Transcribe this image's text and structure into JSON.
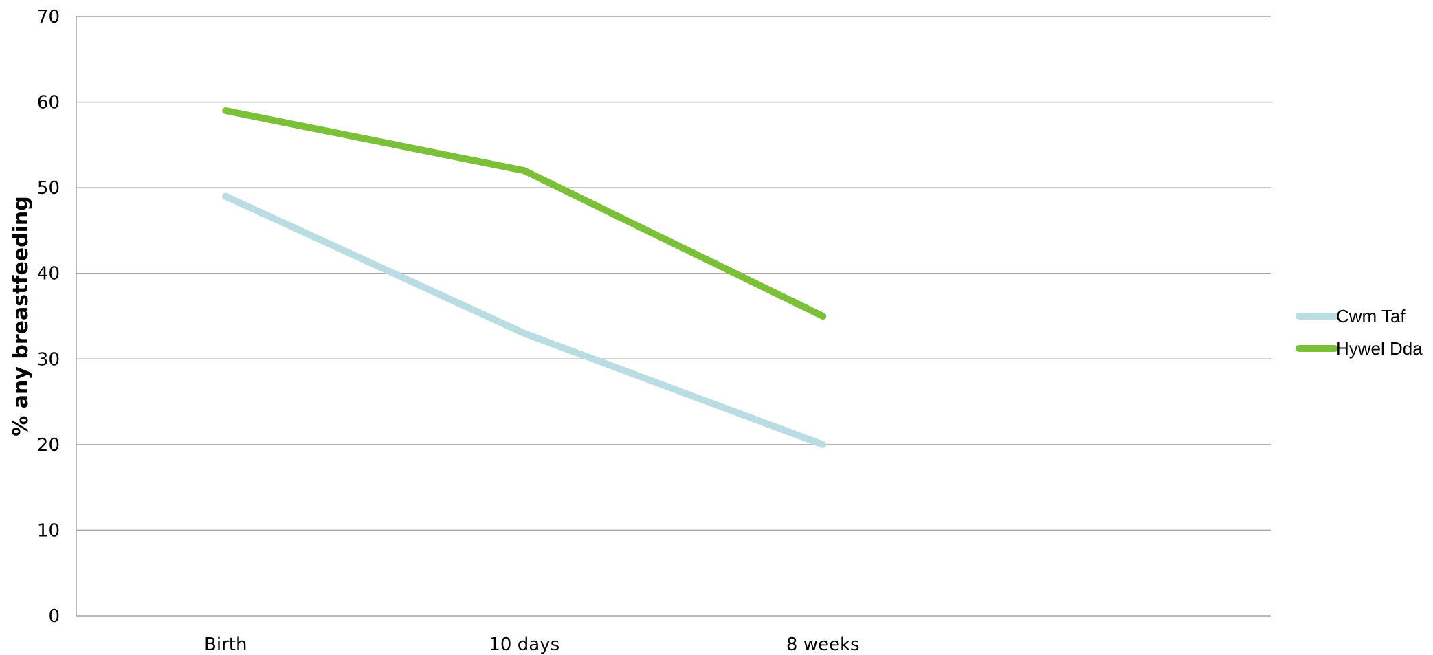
{
  "chart_data": {
    "type": "line",
    "title": "",
    "xlabel": "",
    "ylabel": "% any breastfeeding",
    "ylim": [
      0,
      70
    ],
    "yticks": [
      0,
      10,
      20,
      30,
      40,
      50,
      60,
      70
    ],
    "categories": [
      "Birth",
      "10 days",
      "8 weeks"
    ],
    "slots": 4,
    "grid": true,
    "legend": "right",
    "series": [
      {
        "name": "Cwm Taf",
        "color": "#b9dde2",
        "values": [
          49,
          33,
          20
        ]
      },
      {
        "name": "Hywel Dda",
        "color": "#7cc03a",
        "values": [
          59,
          52,
          35
        ]
      }
    ]
  }
}
